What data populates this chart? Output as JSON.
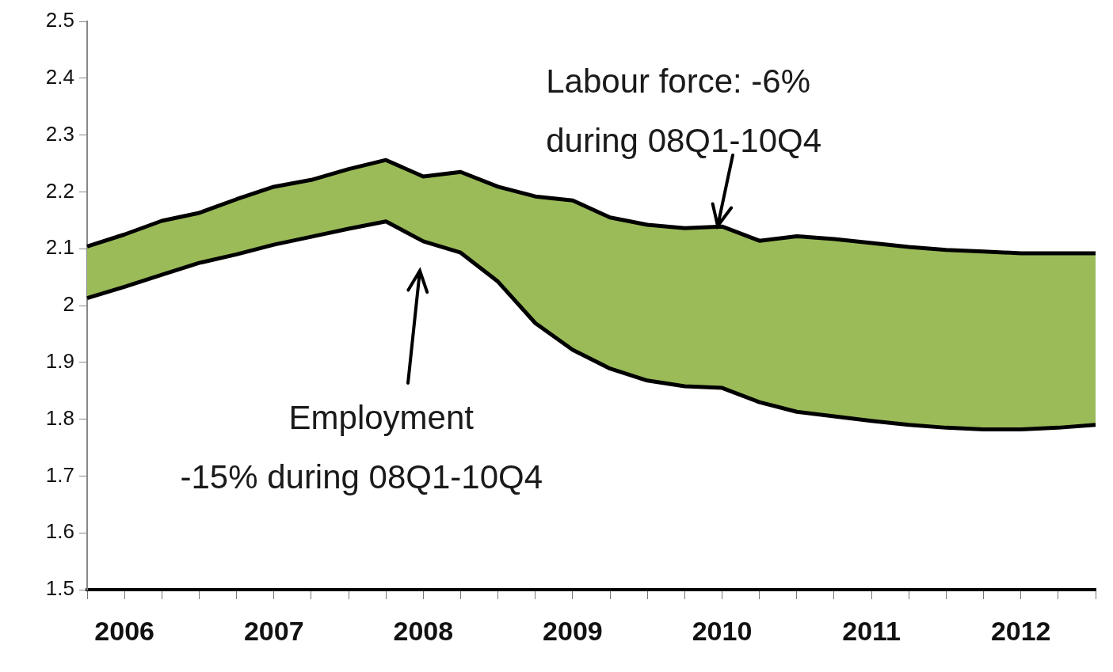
{
  "chart_data": {
    "type": "line",
    "categories": [
      null,
      "2006",
      null,
      null,
      null,
      "2007",
      null,
      null,
      null,
      "2008",
      null,
      null,
      null,
      "2009",
      null,
      null,
      null,
      "2010",
      null,
      null,
      null,
      "2011",
      null,
      null,
      null,
      "2012",
      null,
      null
    ],
    "series": [
      {
        "type": "line",
        "color": "#000000",
        "values": [
          2.013,
          2.033,
          2.054,
          2.075,
          2.09,
          2.107,
          2.121,
          2.135,
          2.148,
          2.113,
          2.093,
          2.042,
          1.969,
          1.922,
          1.889,
          1.868,
          1.858,
          1.855,
          1.83,
          1.813,
          1.805,
          1.797,
          1.79,
          1.785,
          1.782,
          1.782,
          1.785,
          1.79
        ]
      },
      {
        "type": "area",
        "color": "#9bbb59",
        "values": [
          2.104,
          2.125,
          2.149,
          2.163,
          2.187,
          2.209,
          2.221,
          2.24,
          2.256,
          2.227,
          2.235,
          2.209,
          2.192,
          2.185,
          2.155,
          2.142,
          2.136,
          2.139,
          2.114,
          2.122,
          2.117,
          2.11,
          2.103,
          2.098,
          2.095,
          2.092,
          2.092,
          2.092
        ]
      }
    ],
    "ylim": [
      1.5,
      2.5
    ],
    "yticks": [
      1.5,
      1.6,
      1.7,
      1.8,
      1.9,
      2,
      2.1,
      2.2,
      2.3,
      2.4,
      2.5
    ],
    "grid": false,
    "legend": false,
    "marker": "none",
    "line_style": "solid",
    "annotations": [
      {
        "text": "Labour force: -6%\nduring 08Q1-10Q4",
        "y": 2.14
      },
      "Employment\n-15% during 08Q1-10Q4"
    ]
  }
}
